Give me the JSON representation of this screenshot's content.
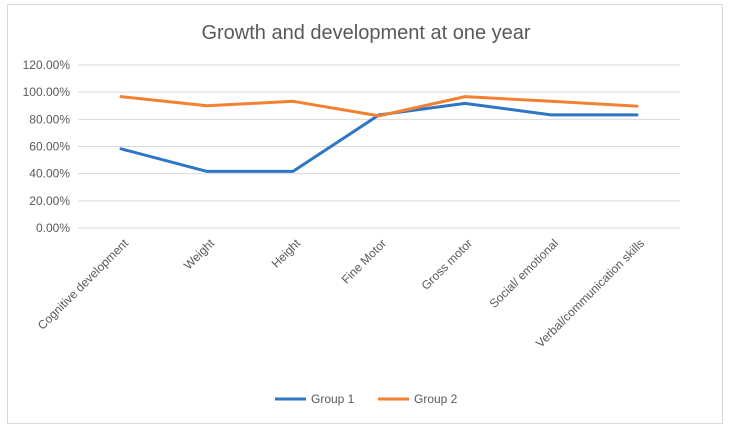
{
  "chart_data": {
    "type": "line",
    "title": "Growth and development at one year",
    "xlabel": "",
    "ylabel": "",
    "categories": [
      "Cognitive development",
      "Weight",
      "Height",
      "Fine Motor",
      "Gross motor",
      "Social/ emotional",
      "Verbal/communication skills"
    ],
    "series": [
      {
        "name": "Group 1",
        "color": "#2e75c6",
        "values": [
          0.583,
          0.417,
          0.417,
          0.833,
          0.917,
          0.833,
          0.833
        ]
      },
      {
        "name": "Group 2",
        "color": "#f28232",
        "values": [
          0.967,
          0.9,
          0.933,
          0.825,
          0.967,
          0.933,
          0.897
        ]
      }
    ],
    "ylim": [
      0,
      1.2
    ],
    "yticks": [
      0,
      0.2,
      0.4,
      0.6,
      0.8,
      1.0,
      1.2
    ],
    "ytick_labels": [
      "0.00%",
      "20.00%",
      "40.00%",
      "60.00%",
      "80.00%",
      "100.00%",
      "120.00%"
    ],
    "grid": true,
    "legend_position": "bottom"
  }
}
